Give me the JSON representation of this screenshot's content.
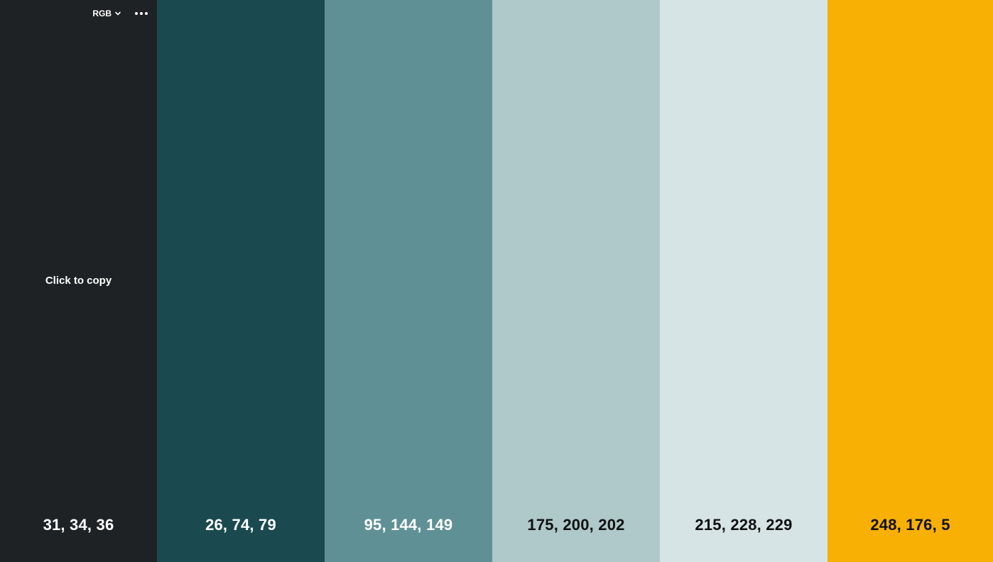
{
  "toolbar": {
    "format_label": "RGB"
  },
  "swatches": [
    {
      "value": "31, 34, 36",
      "color": "#1f2224",
      "text_color": "#ffffff",
      "hint": "Click to copy"
    },
    {
      "value": "26, 74, 79",
      "color": "#1a4a4f",
      "text_color": "#ffffff"
    },
    {
      "value": "95, 144, 149",
      "color": "#5f9095",
      "text_color": "#ffffff"
    },
    {
      "value": "175, 200, 202",
      "color": "#afc8ca",
      "text_color": "#111111"
    },
    {
      "value": "215, 228, 229",
      "color": "#d7e4e5",
      "text_color": "#111111"
    },
    {
      "value": "248, 176, 5",
      "color": "#f8b005",
      "text_color": "#111111"
    }
  ]
}
